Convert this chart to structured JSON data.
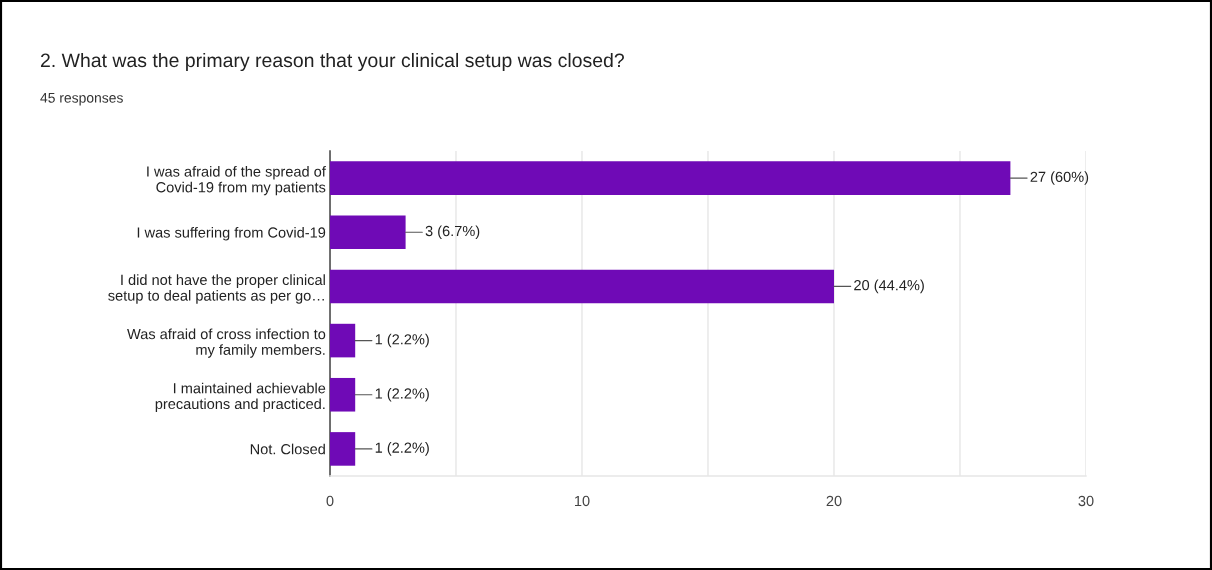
{
  "chart_data": {
    "type": "bar",
    "orientation": "horizontal",
    "title": "2. What was the primary reason that your clinical setup was closed?",
    "subtitle": "45 responses",
    "categories": [
      "I was afraid of the spread of\nCovid-19 from my patients",
      "I was suffering from Covid-19",
      "I did not have the proper clinical\nsetup to deal patients as per go…",
      "Was afraid of cross infection to\nmy family members.",
      "I maintained achievable\nprecautions and practiced.",
      "Not. Closed"
    ],
    "values": [
      27,
      3,
      20,
      1,
      1,
      1
    ],
    "color": "#6f0ab6",
    "value_labels": [
      "27 (60%)",
      "3 (6.7%)",
      "20 (44.4%)",
      "1 (2.2%)",
      "1 (2.2%)",
      "1 (2.2%)"
    ],
    "xlim": [
      0,
      30
    ],
    "xticks": [
      0,
      {
        "value": 5,
        "label": null
      },
      10,
      {
        "value": 15,
        "label": null
      },
      20,
      {
        "value": 25,
        "label": null
      },
      30
    ],
    "grid": "x"
  }
}
